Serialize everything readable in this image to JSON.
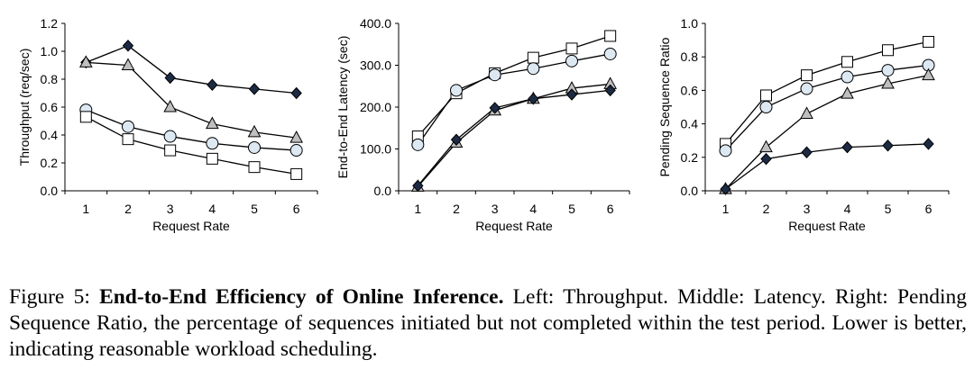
{
  "chart_data": [
    {
      "type": "line",
      "ylabel": "Throughput (req/sec)",
      "xlabel": "Request Rate",
      "x": [
        1,
        2,
        3,
        4,
        5,
        6
      ],
      "xticks": [
        "1",
        "2",
        "3",
        "4",
        "5",
        "6"
      ],
      "ylim": [
        0,
        1.2
      ],
      "yticks": [
        "0.0",
        "0.2",
        "0.4",
        "0.6",
        "0.8",
        "1.0",
        "1.2"
      ],
      "series": [
        {
          "marker": "diamond",
          "values": [
            0.92,
            1.04,
            0.81,
            0.76,
            0.73,
            0.7
          ]
        },
        {
          "marker": "triangle",
          "values": [
            0.92,
            0.9,
            0.6,
            0.48,
            0.42,
            0.38
          ]
        },
        {
          "marker": "circle",
          "values": [
            0.58,
            0.46,
            0.39,
            0.34,
            0.31,
            0.29
          ]
        },
        {
          "marker": "square",
          "values": [
            0.53,
            0.37,
            0.29,
            0.23,
            0.17,
            0.12
          ]
        }
      ]
    },
    {
      "type": "line",
      "ylabel": "End-to-End Latency (sec)",
      "xlabel": "Request Rate",
      "x": [
        1,
        2,
        3,
        4,
        5,
        6
      ],
      "xticks": [
        "1",
        "2",
        "3",
        "4",
        "5",
        "6"
      ],
      "ylim": [
        0,
        400
      ],
      "yticks": [
        "0.0",
        "100.0",
        "200.0",
        "300.0",
        "400.0"
      ],
      "series": [
        {
          "marker": "square",
          "values": [
            130,
            233,
            281,
            318,
            340,
            370
          ]
        },
        {
          "marker": "circle",
          "values": [
            110,
            240,
            277,
            292,
            310,
            327
          ]
        },
        {
          "marker": "triangle",
          "values": [
            10,
            115,
            192,
            220,
            245,
            255
          ]
        },
        {
          "marker": "diamond",
          "values": [
            12,
            122,
            198,
            220,
            230,
            240
          ]
        }
      ]
    },
    {
      "type": "line",
      "ylabel": "Pending Sequence Ratio",
      "xlabel": "Request Rate",
      "x": [
        1,
        2,
        3,
        4,
        5,
        6
      ],
      "xticks": [
        "1",
        "2",
        "3",
        "4",
        "5",
        "6"
      ],
      "ylim": [
        0,
        1.0
      ],
      "yticks": [
        "0.0",
        "0.2",
        "0.4",
        "0.6",
        "0.8",
        "1.0"
      ],
      "series": [
        {
          "marker": "square",
          "values": [
            0.28,
            0.57,
            0.69,
            0.77,
            0.84,
            0.89
          ]
        },
        {
          "marker": "circle",
          "values": [
            0.24,
            0.5,
            0.61,
            0.68,
            0.72,
            0.75
          ]
        },
        {
          "marker": "triangle",
          "values": [
            0.01,
            0.26,
            0.46,
            0.58,
            0.64,
            0.69
          ]
        },
        {
          "marker": "diamond",
          "values": [
            0.01,
            0.19,
            0.23,
            0.26,
            0.27,
            0.28
          ]
        }
      ]
    }
  ],
  "styles": {
    "line": "#000000",
    "diamond": "#1c2a44",
    "triangle": "#bfbfbf",
    "circle": "#dce8f2",
    "square": "#ffffff"
  },
  "caption": {
    "prefix": "Figure 5: ",
    "bold": "End-to-End Efficiency of Online Inference.",
    "rest": " Left: Throughput. Middle: Latency. Right: Pending Sequence Ratio, the percentage of sequences initiated but not completed within the test period. Lower is better, indicating reasonable workload scheduling."
  }
}
